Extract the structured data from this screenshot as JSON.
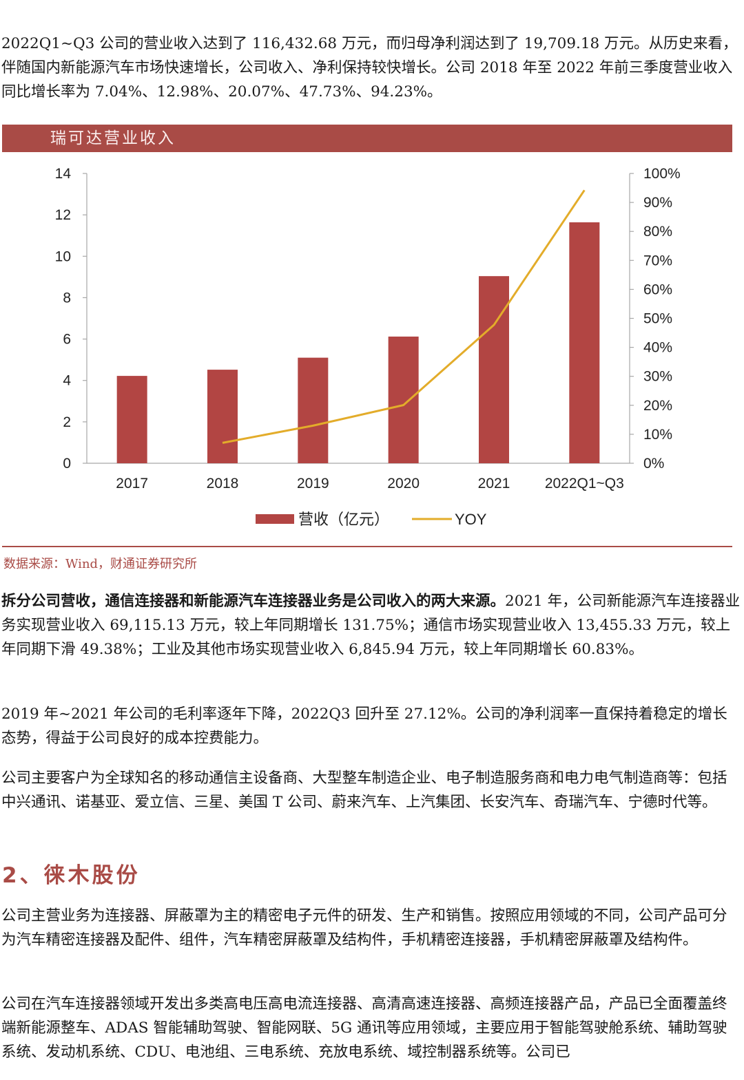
{
  "paragraphs": {
    "p1": "2022Q1~Q3 公司的营业收入达到了 116,432.68 万元，而归母净利润达到了 19,709.18 万元。从历史来看，伴随国内新能源汽车市场快速增长，公司收入、净利保持较快增长。公司 2018 年至 2022 年前三季度营业收入同比增长率为 7.04%、12.98%、20.07%、47.73%、94.23%。",
    "p2_bold": "拆分公司营收，通信连接器和新能源汽车连接器业务是公司收入的两大来源。",
    "p2_rest": "2021 年，公司新能源汽车连接器业务实现营业收入 69,115.13 万元，较上年同期增长 131.75%；通信市场实现营业收入 13,455.33 万元，较上年同期下滑 49.38%；工业及其他市场实现营业收入 6,845.94 万元，较上年同期增长 60.83%。",
    "p3": "2019 年~2021 年公司的毛利率逐年下降，2022Q3 回升至 27.12%。公司的净利润率一直保持着稳定的增长态势，得益于公司良好的成本控费能力。",
    "p4": "公司主要客户为全球知名的移动通信主设备商、大型整车制造企业、电子制造服务商和电力电气制造商等：包括中兴通讯、诺基亚、爱立信、三星、美国 T 公司、蔚来汽车、上汽集团、长安汽车、奇瑞汽车、宁德时代等。",
    "p5": "公司主营业务为连接器、屏蔽罩为主的精密电子元件的研发、生产和销售。按照应用领域的不同，公司产品可分为汽车精密连接器及配件、组件，汽车精密屏蔽罩及结构件，手机精密连接器，手机精密屏蔽罩及结构件。",
    "p6": "公司在汽车连接器领域开发出多类高电压高电流连接器、高清高速连接器、高频连接器产品，产品已全面覆盖终端新能源整车、ADAS 智能辅助驾驶、智能网联、5G 通讯等应用领域，主要应用于智能驾驶舱系统、辅助驾驶系统、发动机系统、CDU、电池组、三电系统、充放电系统、域控制器系统等。公司已"
  },
  "figure": {
    "title": "瑞可达营业收入",
    "source": "数据来源：Wind，财通证券研究所"
  },
  "section": {
    "title": "2、徕木股份"
  },
  "colors": {
    "accent": "#a94b46",
    "bar": "#b24543",
    "line": "#e3ac2a"
  },
  "chart_data": {
    "type": "bar",
    "title": "瑞可达营业收入",
    "categories": [
      "2017",
      "2018",
      "2019",
      "2020",
      "2021",
      "2022Q1~Q3"
    ],
    "series": [
      {
        "name": "营收（亿元）",
        "type": "bar",
        "axis": "left",
        "values": [
          4.22,
          4.52,
          5.1,
          6.12,
          9.04,
          11.64
        ]
      },
      {
        "name": "YOY",
        "type": "line",
        "axis": "right",
        "values": [
          null,
          7.04,
          12.98,
          20.07,
          47.73,
          94.23
        ]
      }
    ],
    "y_left": {
      "ylim": [
        0,
        14
      ],
      "ticks": [
        "0",
        "2",
        "4",
        "6",
        "8",
        "10",
        "12",
        "14"
      ]
    },
    "y_right": {
      "ylim": [
        0,
        100
      ],
      "ticks": [
        "0%",
        "10%",
        "20%",
        "30%",
        "40%",
        "50%",
        "60%",
        "70%",
        "80%",
        "90%",
        "100%"
      ]
    },
    "legend": "bottom-center",
    "grid": false
  }
}
